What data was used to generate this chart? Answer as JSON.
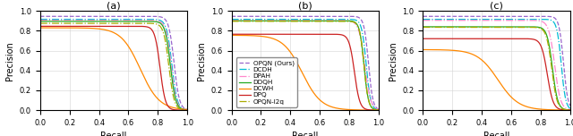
{
  "title_a": "(a)",
  "title_b": "(b)",
  "title_c": "(c)",
  "xlabel": "Recall",
  "ylabel": "Precision",
  "legend_labels": [
    "OPQN (Ours)",
    "DCDH",
    "DPAH",
    "DDQH",
    "DCWH",
    "DPQ",
    "OPQN-l2q"
  ],
  "colors": {
    "OPQN (Ours)": "#9966cc",
    "DCDH": "#00bcd4",
    "DPAH": "#ff88cc",
    "DDQH": "#22aa22",
    "DCWH": "#ff8800",
    "DPQ": "#cc2222",
    "OPQN-l2q": "#aaaa00"
  },
  "linestyles": {
    "OPQN (Ours)": "--",
    "DCDH": "-.",
    "DPAH": "-.",
    "DDQH": "-",
    "DCWH": "-",
    "DPQ": "-",
    "OPQN-l2q": "-."
  },
  "curves_a": {
    "OPQN (Ours)": [
      0.945,
      0.91,
      0.018
    ],
    "DCDH": [
      0.915,
      0.895,
      0.018
    ],
    "DPAH": [
      0.905,
      0.89,
      0.018
    ],
    "DDQH": [
      0.895,
      0.885,
      0.018
    ],
    "DCWH": [
      0.83,
      0.68,
      0.065
    ],
    "DPQ": [
      0.845,
      0.815,
      0.018
    ],
    "OPQN-l2q": [
      0.875,
      0.875,
      0.018
    ]
  },
  "curves_b": {
    "OPQN (Ours)": [
      0.945,
      0.93,
      0.015
    ],
    "DCDH": [
      0.915,
      0.915,
      0.015
    ],
    "DPAH": [
      0.905,
      0.905,
      0.02
    ],
    "DDQH": [
      0.9,
      0.9,
      0.015
    ],
    "DCWH": [
      0.755,
      0.48,
      0.065
    ],
    "DPQ": [
      0.765,
      0.835,
      0.018
    ],
    "OPQN-l2q": [
      0.895,
      0.9,
      0.015
    ]
  },
  "curves_c": {
    "OPQN (Ours)": [
      0.945,
      0.955,
      0.015
    ],
    "DCDH": [
      0.915,
      0.94,
      0.015
    ],
    "DPAH": [
      0.905,
      0.895,
      0.02
    ],
    "DDQH": [
      0.84,
      0.88,
      0.018
    ],
    "DCWH": [
      0.61,
      0.51,
      0.07
    ],
    "DPQ": [
      0.72,
      0.845,
      0.02
    ],
    "OPQN-l2q": [
      0.835,
      0.875,
      0.018
    ]
  }
}
